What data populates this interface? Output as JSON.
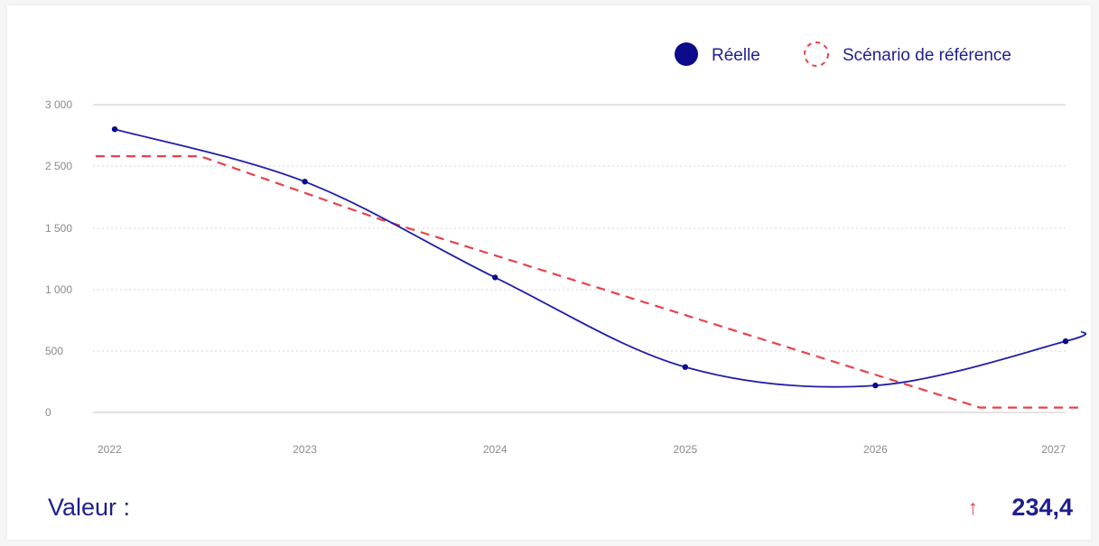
{
  "chart_data": {
    "type": "line",
    "x": [
      2022,
      2023,
      2024,
      2025,
      2026,
      2027
    ],
    "series": [
      {
        "name": "Réelle",
        "style": "solid",
        "color": "#1f1fa8",
        "values": [
          2800,
          2250,
          1100,
          370,
          220,
          580
        ],
        "extended_last": 660
      },
      {
        "name": "Scénario de référence",
        "style": "dashed",
        "color": "#e8424a",
        "points": [
          [
            2021.9,
            2580
          ],
          [
            2022.45,
            2580
          ],
          [
            2023.4,
            1640
          ],
          [
            2026.55,
            40
          ],
          [
            2027.1,
            40
          ]
        ]
      }
    ],
    "y_ticks": [
      "3 000",
      "2 500",
      "1 500",
      "1 000",
      "500",
      "0"
    ],
    "x_ticks": [
      "2022",
      "2023",
      "2024",
      "2025",
      "2026",
      "2027"
    ],
    "ylim": [
      0,
      3000
    ],
    "legend_position": "top-right",
    "grid": true
  },
  "legend": {
    "actual": "Réelle",
    "reference": "Scénario de référence"
  },
  "value": {
    "label": "Valeur :",
    "arrow": "↑",
    "number": "234,4"
  },
  "colors": {
    "actual": "#1f1fa8",
    "reference": "#e8424a",
    "text": "#1f1f8e",
    "grid": "#d6d6d6"
  }
}
